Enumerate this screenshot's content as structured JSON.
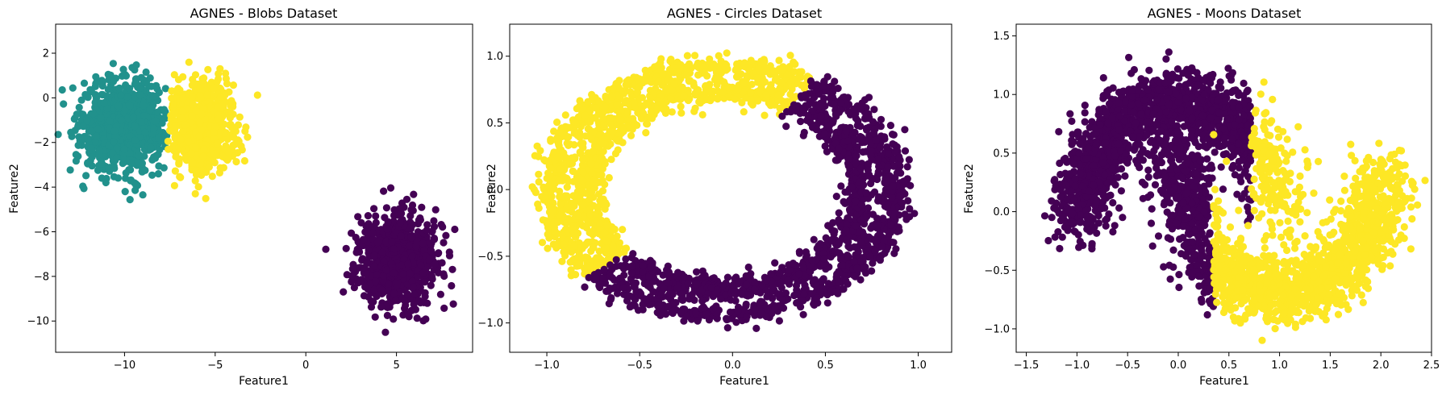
{
  "chart_data": [
    {
      "type": "scatter",
      "title": "AGNES - Blobs Dataset",
      "xlabel": "Feature1",
      "ylabel": "Feature2",
      "xlim": [
        -13.8,
        9.2
      ],
      "ylim": [
        -11.4,
        3.3
      ],
      "xticks": [
        -10,
        -5,
        0,
        5
      ],
      "yticks": [
        -10,
        -8,
        -6,
        -4,
        -2,
        0,
        2
      ],
      "xtick_labels": [
        "−10",
        "−5",
        "0",
        "5"
      ],
      "ytick_labels": [
        "−10",
        "−8",
        "−6",
        "−4",
        "−2",
        "0",
        "2"
      ],
      "grid": false,
      "clusters": [
        {
          "color": "#21918c",
          "shape": "blob",
          "center": [
            -10.0,
            -1.2
          ],
          "spread": [
            1.15,
            1.0
          ],
          "n": 950,
          "clipXMax": -7.6
        },
        {
          "color": "#fde725",
          "shape": "blob",
          "center": [
            -5.8,
            -1.3
          ],
          "spread": [
            1.0,
            1.0
          ],
          "n": 700,
          "clipXMin": -7.6
        },
        {
          "color": "#440154",
          "shape": "blob",
          "center": [
            5.0,
            -7.3
          ],
          "spread": [
            1.05,
            1.0
          ],
          "n": 900
        }
      ]
    },
    {
      "type": "scatter",
      "title": "AGNES - Circles Dataset",
      "xlabel": "Feature1",
      "ylabel": "Feature2",
      "xlim": [
        -1.2,
        1.18
      ],
      "ylim": [
        -1.22,
        1.24
      ],
      "xticks": [
        -1.0,
        -0.5,
        0.0,
        0.5,
        1.0
      ],
      "yticks": [
        -1.0,
        -0.5,
        0.0,
        0.5,
        1.0
      ],
      "xtick_labels": [
        "−1.0",
        "−0.5",
        "0.0",
        "0.5",
        "1.0"
      ],
      "ytick_labels": [
        "−1.0",
        "−0.5",
        "0.0",
        "0.5",
        "1.0"
      ],
      "grid": false,
      "clusters": [
        {
          "color": "#fde725",
          "shape": "ring",
          "center": [
            -0.05,
            0.0
          ],
          "radii": [
            0.92,
            0.74
          ],
          "aspect": [
            1.0,
            1.0
          ],
          "angle_range_deg": [
            60,
            222
          ],
          "n": 1300
        },
        {
          "color": "#440154",
          "shape": "ring",
          "center": [
            -0.05,
            0.0
          ],
          "radii": [
            0.92,
            0.74
          ],
          "aspect": [
            1.0,
            1.0
          ],
          "angle_range_deg": [
            222,
            420
          ],
          "n": 1500
        }
      ]
    },
    {
      "type": "scatter",
      "title": "AGNES - Moons Dataset",
      "xlabel": "Feature1",
      "ylabel": "Feature2",
      "xlim": [
        -1.6,
        2.5
      ],
      "ylim": [
        -1.2,
        1.6
      ],
      "xticks": [
        -1.5,
        -1.0,
        -0.5,
        0.0,
        0.5,
        1.0,
        1.5,
        2.0,
        2.5
      ],
      "yticks": [
        -1.0,
        -0.5,
        0.0,
        0.5,
        1.0,
        1.5
      ],
      "xtick_labels": [
        "−1.5",
        "−1.0",
        "−0.5",
        "0.0",
        "0.5",
        "1.0",
        "1.5",
        "2.0",
        "2.5"
      ],
      "ytick_labels": [
        "−1.0",
        "−0.5",
        "0.0",
        "0.5",
        "1.0",
        "1.5"
      ],
      "grid": false,
      "clusters": [
        {
          "color": "#440154",
          "shape": "moon_upper",
          "n": 1500,
          "clipXMax": 0.72
        },
        {
          "color": "#440154",
          "shape": "moon_lower",
          "n": 450,
          "clipXMax": 0.35
        },
        {
          "color": "#fde725",
          "shape": "moon_lower",
          "n": 1300,
          "clipXMin": 0.35
        },
        {
          "color": "#fde725",
          "shape": "moon_upper",
          "n": 200,
          "clipXMin": 0.72
        }
      ]
    }
  ]
}
